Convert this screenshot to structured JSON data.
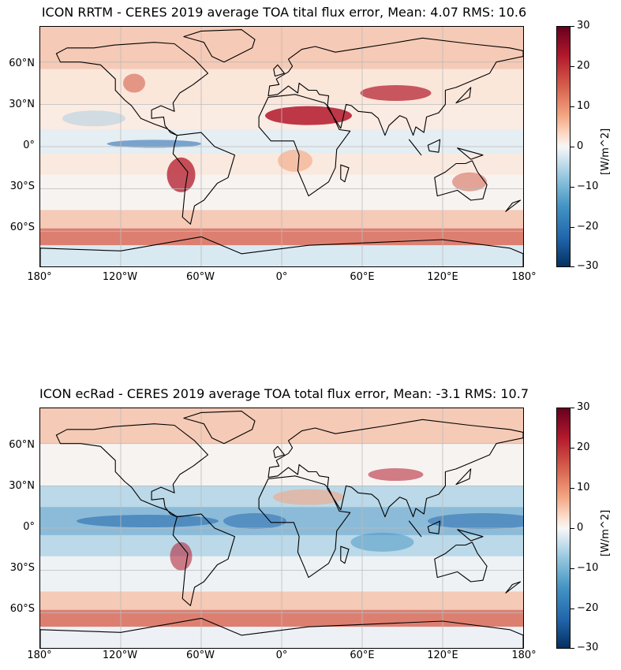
{
  "panels": [
    {
      "title": "ICON RRTM - CERES 2019 average TOA tital flux error, Mean: 4.07 RMS: 10.6",
      "tone": "warm"
    },
    {
      "title": "ICON ecRad - CERES 2019 average TOA total flux error, Mean: -3.1 RMS: 10.7",
      "tone": "cool"
    }
  ],
  "axes": {
    "lat_labels": [
      "60°N",
      "30°N",
      "0°",
      "30°S",
      "60°S"
    ],
    "lon_labels": [
      "180°",
      "120°W",
      "60°W",
      "0°",
      "60°E",
      "120°E",
      "180°"
    ]
  },
  "colorbar": {
    "ticks": [
      "30",
      "20",
      "10",
      "0",
      "−10",
      "−20",
      "−30"
    ],
    "unit": "[W/m^2]",
    "colormap": "RdBu_r",
    "range": [
      -30,
      30
    ]
  },
  "colors": {
    "strong_positive": "#b2182b",
    "positive": "#f4a582",
    "neutral": "#f7f7f7",
    "negative": "#92c5de",
    "strong_negative": "#2166ac",
    "coastline": "#000000",
    "grid": "#bbbbbb"
  }
}
